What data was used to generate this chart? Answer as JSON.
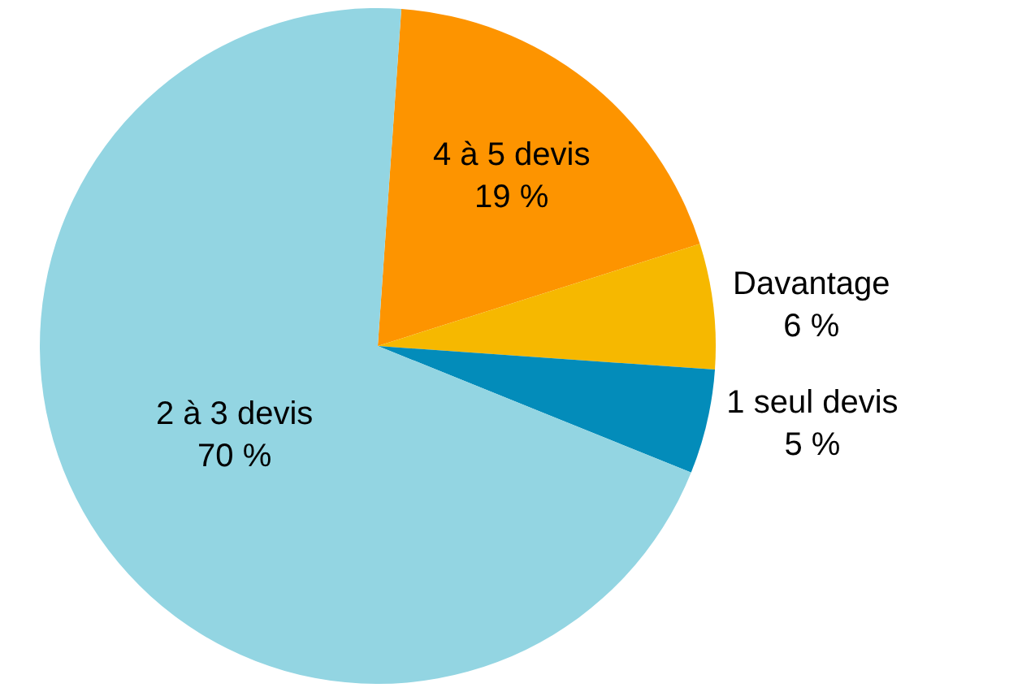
{
  "chart_data": {
    "type": "pie",
    "categories": [
      "4 à 5 devis",
      "Davantage",
      "1 seul devis",
      "2 à 3 devis"
    ],
    "values": [
      19,
      6,
      5,
      70
    ],
    "value_labels": [
      "19 %",
      "6 %",
      "5 %",
      "70 %"
    ],
    "colors": [
      "#fd9400",
      "#f6b800",
      "#038cba",
      "#93d5e2"
    ],
    "legend": false
  }
}
